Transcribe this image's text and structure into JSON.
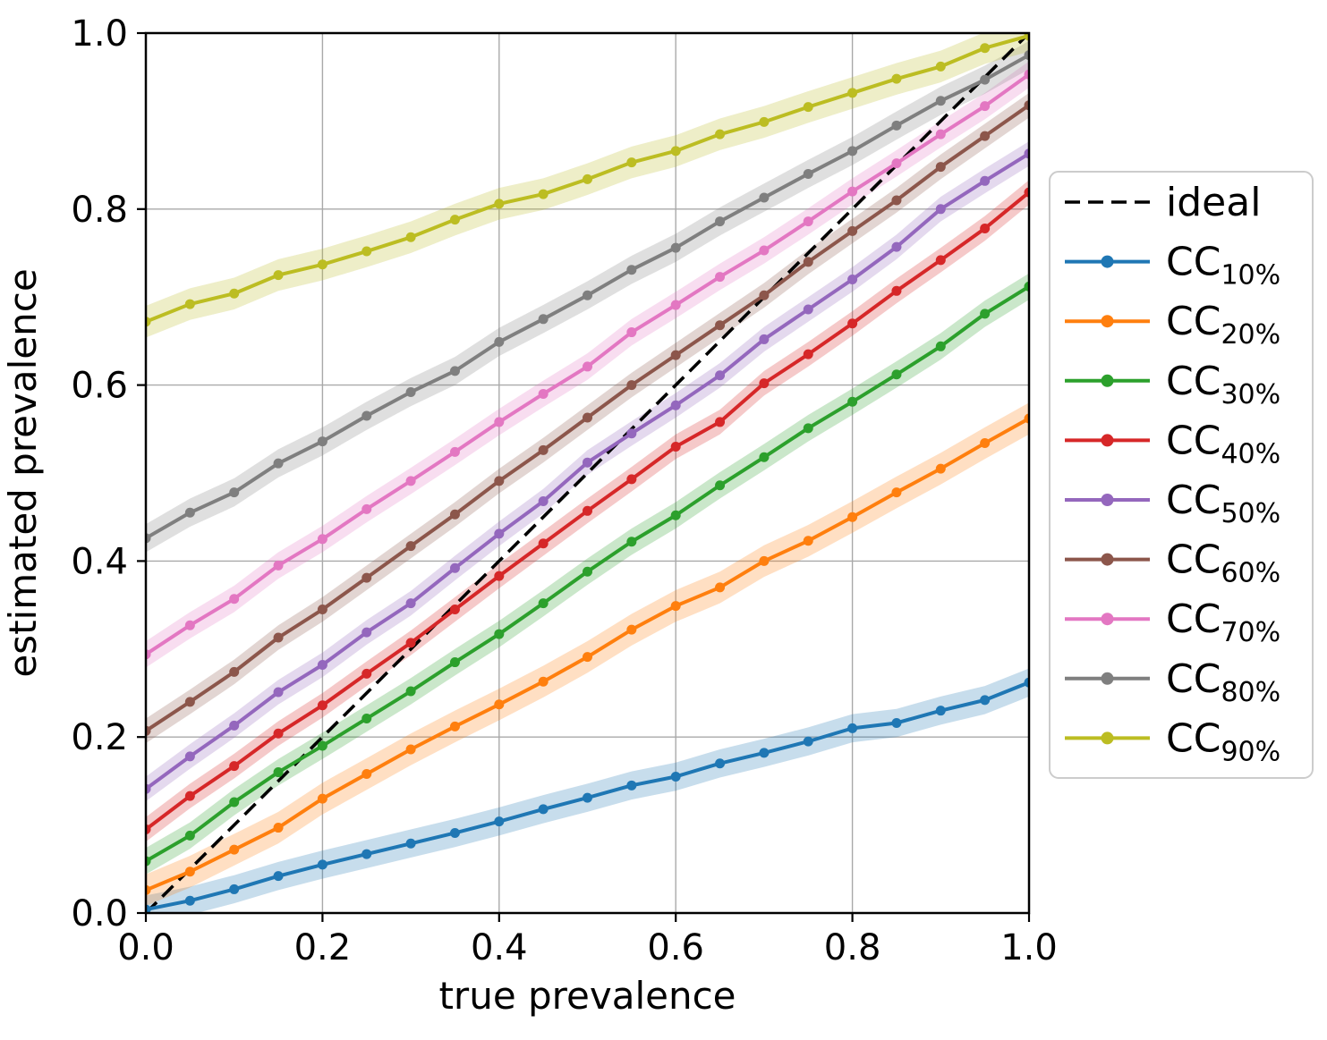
{
  "chart_data": {
    "type": "line",
    "title": "",
    "xlabel": "true prevalence",
    "ylabel": "estimated prevalence",
    "xlim": [
      0.0,
      1.0
    ],
    "ylim": [
      0.0,
      1.0
    ],
    "grid": true,
    "legend_position": "outside-right",
    "xticks": {
      "values": [
        0.0,
        0.2,
        0.4,
        0.6,
        0.8,
        1.0
      ],
      "labels": [
        "0.0",
        "0.2",
        "0.4",
        "0.6",
        "0.8",
        "1.0"
      ]
    },
    "yticks": {
      "values": [
        0.0,
        0.2,
        0.4,
        0.6,
        0.8,
        1.0
      ],
      "labels": [
        "0.0",
        "0.2",
        "0.4",
        "0.6",
        "0.8",
        "1.0"
      ]
    },
    "x": [
      0.0,
      0.05,
      0.1,
      0.15,
      0.2,
      0.25,
      0.3,
      0.35,
      0.4,
      0.45,
      0.5,
      0.55,
      0.6,
      0.65,
      0.7,
      0.75,
      0.8,
      0.85,
      0.9,
      0.95,
      1.0
    ],
    "ideal": {
      "label": "ideal",
      "color": "#000000",
      "linestyle": "dashed",
      "points": [
        [
          0.0,
          0.0
        ],
        [
          1.0,
          1.0
        ]
      ]
    },
    "series": [
      {
        "name": "CC_10%",
        "label_main": "CC",
        "label_sub": "10%",
        "color": "#1f77b4",
        "band_halfwidth": 0.016,
        "values": [
          0.004,
          0.014,
          0.027,
          0.042,
          0.055,
          0.067,
          0.079,
          0.091,
          0.104,
          0.118,
          0.131,
          0.145,
          0.155,
          0.17,
          0.182,
          0.195,
          0.21,
          0.216,
          0.23,
          0.242,
          0.262
        ]
      },
      {
        "name": "CC_20%",
        "label_main": "CC",
        "label_sub": "20%",
        "color": "#ff7f0e",
        "band_halfwidth": 0.018,
        "values": [
          0.026,
          0.047,
          0.072,
          0.097,
          0.13,
          0.158,
          0.186,
          0.212,
          0.237,
          0.263,
          0.291,
          0.322,
          0.349,
          0.37,
          0.4,
          0.423,
          0.45,
          0.478,
          0.505,
          0.534,
          0.562
        ]
      },
      {
        "name": "CC_30%",
        "label_main": "CC",
        "label_sub": "30%",
        "color": "#2ca02c",
        "band_halfwidth": 0.015,
        "values": [
          0.059,
          0.088,
          0.126,
          0.16,
          0.19,
          0.221,
          0.252,
          0.285,
          0.317,
          0.352,
          0.388,
          0.422,
          0.452,
          0.486,
          0.518,
          0.551,
          0.581,
          0.612,
          0.644,
          0.681,
          0.712
        ]
      },
      {
        "name": "CC_40%",
        "label_main": "CC",
        "label_sub": "40%",
        "color": "#d62728",
        "band_halfwidth": 0.014,
        "values": [
          0.095,
          0.133,
          0.167,
          0.204,
          0.236,
          0.272,
          0.307,
          0.345,
          0.383,
          0.42,
          0.457,
          0.493,
          0.53,
          0.558,
          0.602,
          0.635,
          0.67,
          0.707,
          0.742,
          0.778,
          0.819
        ]
      },
      {
        "name": "CC_50%",
        "label_main": "CC",
        "label_sub": "50%",
        "color": "#9467bd",
        "band_halfwidth": 0.014,
        "values": [
          0.141,
          0.178,
          0.213,
          0.251,
          0.282,
          0.319,
          0.352,
          0.392,
          0.431,
          0.468,
          0.512,
          0.545,
          0.577,
          0.611,
          0.652,
          0.686,
          0.72,
          0.757,
          0.8,
          0.832,
          0.863
        ]
      },
      {
        "name": "CC_60%",
        "label_main": "CC",
        "label_sub": "60%",
        "color": "#8c564b",
        "band_halfwidth": 0.014,
        "values": [
          0.207,
          0.24,
          0.274,
          0.313,
          0.345,
          0.381,
          0.417,
          0.453,
          0.491,
          0.526,
          0.563,
          0.6,
          0.634,
          0.668,
          0.702,
          0.74,
          0.775,
          0.81,
          0.848,
          0.883,
          0.918
        ]
      },
      {
        "name": "CC_70%",
        "label_main": "CC",
        "label_sub": "70%",
        "color": "#e377c2",
        "band_halfwidth": 0.015,
        "values": [
          0.294,
          0.327,
          0.357,
          0.395,
          0.425,
          0.459,
          0.491,
          0.524,
          0.558,
          0.59,
          0.621,
          0.66,
          0.691,
          0.723,
          0.753,
          0.786,
          0.82,
          0.852,
          0.885,
          0.917,
          0.953
        ]
      },
      {
        "name": "CC_80%",
        "label_main": "CC",
        "label_sub": "80%",
        "color": "#7f7f7f",
        "band_halfwidth": 0.016,
        "values": [
          0.426,
          0.455,
          0.478,
          0.511,
          0.536,
          0.565,
          0.592,
          0.616,
          0.649,
          0.675,
          0.702,
          0.731,
          0.756,
          0.786,
          0.813,
          0.84,
          0.866,
          0.895,
          0.923,
          0.947,
          0.975
        ]
      },
      {
        "name": "CC_90%",
        "label_main": "CC",
        "label_sub": "90%",
        "color": "#bcbd22",
        "band_halfwidth": 0.018,
        "values": [
          0.672,
          0.692,
          0.704,
          0.725,
          0.737,
          0.752,
          0.768,
          0.788,
          0.806,
          0.817,
          0.834,
          0.853,
          0.866,
          0.885,
          0.899,
          0.916,
          0.932,
          0.948,
          0.962,
          0.983,
          0.997
        ]
      }
    ],
    "style": {
      "grid_color": "#a9a9a9",
      "spine_color": "#000000",
      "background": "#ffffff",
      "band_opacity": 0.25,
      "legend_border_color": "#cccccc",
      "legend_background": "#ffffff"
    }
  }
}
